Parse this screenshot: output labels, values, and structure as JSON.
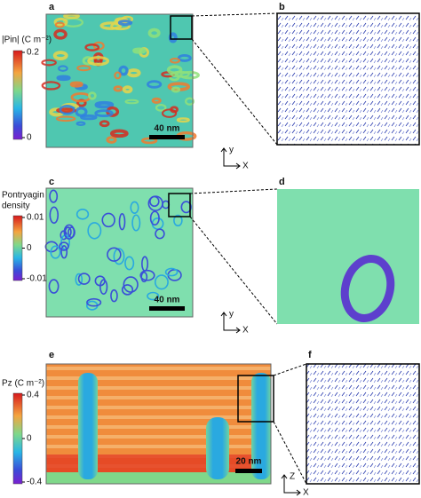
{
  "panels": [
    {
      "label": "a"
    },
    {
      "label": "b"
    },
    {
      "label": "c"
    },
    {
      "label": "d"
    },
    {
      "label": "e"
    },
    {
      "label": "f"
    }
  ],
  "colorbars": [
    {
      "title": [
        "|Pin| (C m⁻²)"
      ],
      "ticks": [
        0.2,
        0
      ]
    },
    {
      "title": [
        "Pontryagin",
        "density"
      ],
      "ticks": [
        0.01,
        0,
        -0.01
      ]
    },
    {
      "title": [
        "Pz (C m⁻²)"
      ],
      "ticks": [
        0.4,
        0,
        -0.4
      ]
    }
  ],
  "scale_bars": [
    "40 nm",
    "40 nm",
    "20 nm"
  ],
  "axes": [
    {
      "vertical": "y",
      "horizontal": "X"
    },
    {
      "vertical": "y",
      "horizontal": "X"
    },
    {
      "vertical": "Z",
      "horizontal": "X"
    }
  ]
}
